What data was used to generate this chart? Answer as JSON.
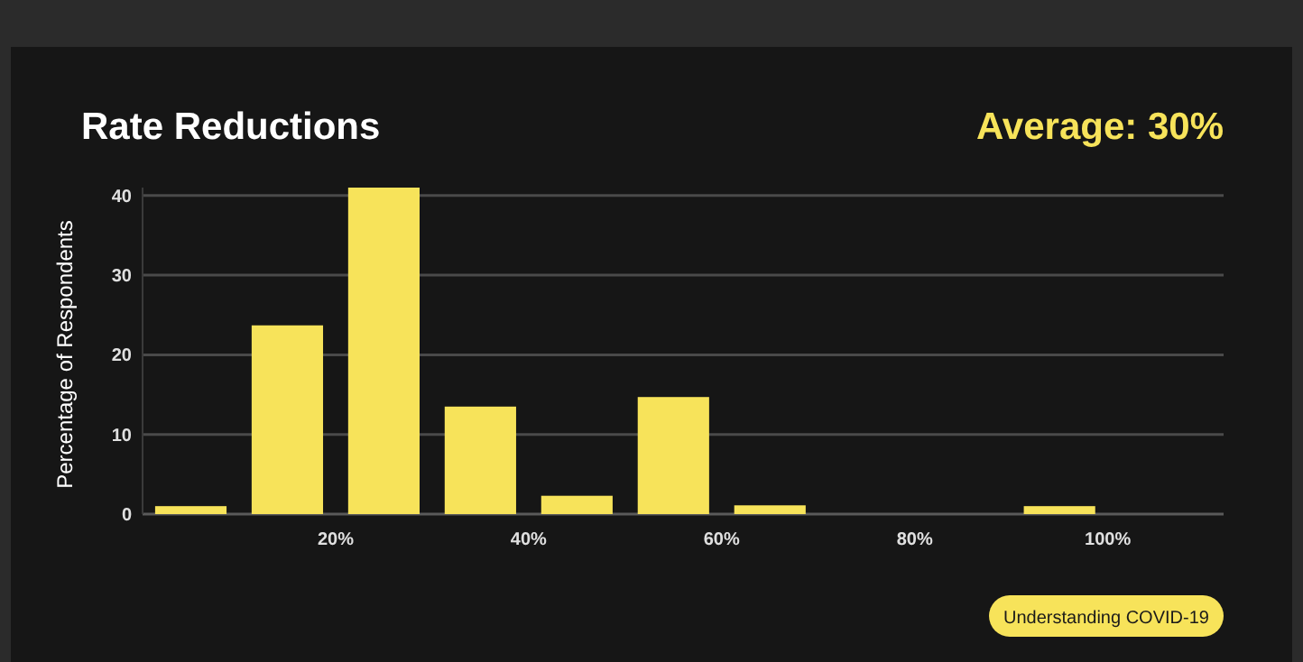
{
  "chart_data": {
    "type": "histogram",
    "title": "Rate Reductions",
    "subtitle": "Average: 30%",
    "ylabel": "Percentage of Respondents",
    "bins": [
      0,
      10,
      20,
      30,
      40,
      50,
      60,
      70,
      80,
      90,
      100
    ],
    "values": [
      1,
      23.7,
      41,
      13.5,
      2.3,
      14.7,
      1.1,
      0,
      0,
      1
    ],
    "color": "#f7e35a",
    "xlim": [
      0,
      112
    ],
    "xticks": [
      {
        "value": 20,
        "label": "20%"
      },
      {
        "value": 40,
        "label": "40%"
      },
      {
        "value": 60,
        "label": "60%"
      },
      {
        "value": 80,
        "label": "80%"
      },
      {
        "value": 100,
        "label": "100%"
      }
    ],
    "ylim": [
      0,
      41
    ],
    "yticks": [
      0,
      10,
      20,
      30,
      40
    ],
    "grid": "y",
    "annotations": [
      "Understanding COVID-19"
    ]
  }
}
